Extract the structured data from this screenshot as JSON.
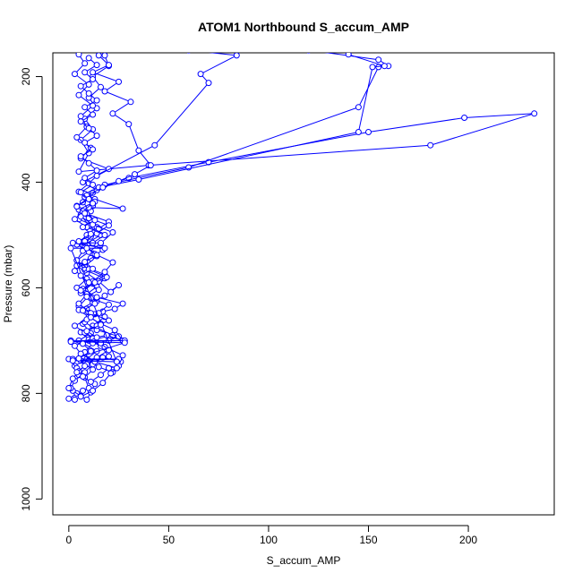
{
  "chart_data": {
    "type": "scatter",
    "title": "ATOM1 Northbound S_accum_AMP",
    "xlabel": "S_accum_AMP",
    "ylabel": "Pressure (mbar)",
    "xlim": [
      -8,
      243
    ],
    "ylim": [
      1030,
      155
    ],
    "y_reversed": true,
    "grid": false,
    "legend": "none",
    "x_ticks": [
      0,
      50,
      100,
      150,
      200
    ],
    "y_ticks": [
      200,
      400,
      600,
      800,
      1000
    ],
    "marker": "open-circle",
    "color": "#0000ff",
    "series": [
      {
        "points": [
          [
            0,
            810
          ],
          [
            4,
            800
          ],
          [
            7,
            795
          ],
          [
            10,
            790
          ],
          [
            8,
            770
          ],
          [
            12,
            755
          ],
          [
            6,
            738
          ],
          [
            20,
            730
          ],
          [
            16,
            710
          ],
          [
            10,
            700
          ],
          [
            22,
            690
          ],
          [
            12,
            672
          ],
          [
            18,
            655
          ],
          [
            9,
            640
          ],
          [
            14,
            625
          ],
          [
            6,
            610
          ],
          [
            12,
            592
          ],
          [
            18,
            575
          ],
          [
            8,
            560
          ],
          [
            14,
            540
          ],
          [
            7,
            520
          ],
          [
            16,
            500
          ],
          [
            10,
            482
          ],
          [
            6,
            462
          ],
          [
            12,
            445
          ],
          [
            8,
            428
          ],
          [
            15,
            410
          ],
          [
            30,
            392
          ],
          [
            70,
            362
          ],
          [
            150,
            305
          ],
          [
            198,
            278
          ],
          [
            233,
            270
          ],
          [
            181,
            330
          ],
          [
            40,
            368
          ],
          [
            5,
            380
          ],
          [
            10,
            345
          ],
          [
            6,
            320
          ],
          [
            12,
            300
          ],
          [
            8,
            280
          ],
          [
            14,
            260
          ],
          [
            10,
            240
          ],
          [
            16,
            220
          ],
          [
            12,
            200
          ],
          [
            20,
            180
          ],
          [
            18,
            160
          ]
        ]
      },
      {
        "points": [
          [
            2,
            795
          ],
          [
            6,
            805
          ],
          [
            9,
            812
          ],
          [
            11,
            798
          ],
          [
            13,
            782
          ],
          [
            5,
            765
          ],
          [
            3,
            748
          ],
          [
            9,
            735
          ],
          [
            14,
            720
          ],
          [
            5,
            700
          ],
          [
            11,
            686
          ],
          [
            7,
            668
          ],
          [
            13,
            650
          ],
          [
            5,
            635
          ],
          [
            10,
            615
          ],
          [
            4,
            600
          ],
          [
            9,
            583
          ],
          [
            3,
            568
          ],
          [
            8,
            552
          ],
          [
            12,
            535
          ],
          [
            4,
            518
          ],
          [
            9,
            500
          ],
          [
            14,
            485
          ],
          [
            5,
            470
          ],
          [
            11,
            455
          ],
          [
            7,
            438
          ],
          [
            12,
            420
          ],
          [
            18,
            405
          ],
          [
            60,
            372
          ],
          [
            145,
            258
          ],
          [
            155,
            182
          ],
          [
            160,
            180
          ],
          [
            155,
            168
          ],
          [
            120,
            150
          ]
        ]
      },
      {
        "points": [
          [
            1,
            790
          ],
          [
            3,
            776
          ],
          [
            8,
            760
          ],
          [
            12,
            745
          ],
          [
            17,
            732
          ],
          [
            26,
            740
          ],
          [
            22,
            760
          ],
          [
            15,
            750
          ],
          [
            10,
            738
          ],
          [
            8,
            722
          ],
          [
            12,
            705
          ],
          [
            20,
            700
          ],
          [
            25,
            692
          ],
          [
            14,
            680
          ],
          [
            8,
            665
          ],
          [
            17,
            645
          ],
          [
            23,
            640
          ],
          [
            27,
            630
          ],
          [
            14,
            618
          ],
          [
            7,
            602
          ],
          [
            12,
            588
          ],
          [
            18,
            570
          ],
          [
            22,
            552
          ],
          [
            13,
            536
          ],
          [
            8,
            520
          ],
          [
            11,
            503
          ],
          [
            15,
            488
          ],
          [
            20,
            475
          ],
          [
            9,
            460
          ],
          [
            4,
            445
          ],
          [
            10,
            430
          ],
          [
            14,
            415
          ],
          [
            7,
            400
          ],
          [
            20,
            375
          ],
          [
            6,
            355
          ],
          [
            11,
            335
          ],
          [
            4,
            315
          ],
          [
            9,
            295
          ],
          [
            6,
            275
          ],
          [
            12,
            255
          ],
          [
            5,
            235
          ],
          [
            10,
            215
          ],
          [
            3,
            195
          ],
          [
            8,
            175
          ],
          [
            5,
            158
          ]
        ]
      },
      {
        "points": [
          [
            0,
            735
          ],
          [
            4,
            752
          ],
          [
            7,
            768
          ],
          [
            11,
            778
          ],
          [
            16,
            765
          ],
          [
            20,
            752
          ],
          [
            25,
            748
          ],
          [
            27,
            728
          ],
          [
            18,
            712
          ],
          [
            10,
            698
          ],
          [
            6,
            684
          ],
          [
            14,
            672
          ],
          [
            20,
            662
          ],
          [
            11,
            648
          ],
          [
            5,
            630
          ],
          [
            9,
            612
          ],
          [
            14,
            598
          ],
          [
            18,
            582
          ],
          [
            8,
            566
          ],
          [
            4,
            548
          ],
          [
            10,
            532
          ],
          [
            16,
            516
          ],
          [
            22,
            495
          ],
          [
            12,
            480
          ],
          [
            6,
            465
          ],
          [
            10,
            448
          ],
          [
            27,
            450
          ],
          [
            13,
            432
          ],
          [
            5,
            418
          ],
          [
            10,
            402
          ],
          [
            14,
            388
          ],
          [
            43,
            330
          ],
          [
            70,
            212
          ],
          [
            66,
            195
          ],
          [
            84,
            160
          ],
          [
            60,
            150
          ]
        ]
      },
      {
        "points": [
          [
            3,
            812
          ],
          [
            6,
            806
          ],
          [
            12,
            795
          ],
          [
            17,
            780
          ],
          [
            21,
            762
          ],
          [
            24,
            752
          ],
          [
            13,
            740
          ],
          [
            6,
            725
          ],
          [
            3,
            710
          ],
          [
            12,
            695
          ],
          [
            19,
            690
          ],
          [
            27,
            700
          ],
          [
            23,
            680
          ],
          [
            16,
            668
          ],
          [
            10,
            655
          ],
          [
            5,
            642
          ],
          [
            12,
            628
          ],
          [
            18,
            615
          ],
          [
            25,
            595
          ],
          [
            21,
            608
          ],
          [
            15,
            588
          ],
          [
            9,
            572
          ],
          [
            4,
            558
          ],
          [
            11,
            544
          ],
          [
            17,
            528
          ],
          [
            8,
            512
          ],
          [
            14,
            497
          ],
          [
            20,
            482
          ],
          [
            10,
            468
          ],
          [
            5,
            452
          ],
          [
            13,
            437
          ],
          [
            8,
            422
          ],
          [
            15,
            410
          ],
          [
            35,
            395
          ],
          [
            145,
            305
          ],
          [
            152,
            182
          ],
          [
            158,
            180
          ],
          [
            140,
            158
          ]
        ]
      },
      {
        "points": [
          [
            0,
            790
          ],
          [
            2,
            772
          ],
          [
            5,
            758
          ],
          [
            9,
            745
          ],
          [
            14,
            732
          ],
          [
            20,
            718
          ],
          [
            16,
            705
          ],
          [
            12,
            696
          ],
          [
            8,
            685
          ],
          [
            3,
            672
          ],
          [
            9,
            660
          ],
          [
            15,
            648
          ],
          [
            20,
            632
          ],
          [
            11,
            620
          ],
          [
            6,
            605
          ],
          [
            13,
            590
          ],
          [
            19,
            580
          ],
          [
            10,
            565
          ],
          [
            4,
            548
          ],
          [
            7,
            530
          ],
          [
            12,
            515
          ],
          [
            18,
            500
          ],
          [
            9,
            485
          ],
          [
            3,
            470
          ],
          [
            7,
            455
          ],
          [
            12,
            440
          ],
          [
            9,
            425
          ],
          [
            17,
            410
          ],
          [
            25,
            398
          ],
          [
            33,
            385
          ],
          [
            41,
            368
          ],
          [
            35,
            340
          ],
          [
            30,
            290
          ],
          [
            22,
            270
          ],
          [
            31,
            248
          ],
          [
            18,
            228
          ],
          [
            25,
            210
          ],
          [
            12,
            192
          ],
          [
            20,
            178
          ],
          [
            15,
            160
          ]
        ]
      },
      {
        "points": [
          [
            1,
            700
          ],
          [
            28,
            700
          ],
          [
            1,
            702
          ],
          [
            28,
            704
          ],
          [
            2,
            735
          ],
          [
            25,
            735
          ],
          [
            2,
            738
          ],
          [
            24,
            740
          ],
          [
            1,
            525
          ],
          [
            18,
            525
          ],
          [
            2,
            515
          ],
          [
            16,
            515
          ]
        ]
      },
      {
        "points": [
          [
            4,
            760
          ],
          [
            8,
            748
          ],
          [
            5,
            734
          ],
          [
            11,
            720
          ],
          [
            7,
            706
          ],
          [
            14,
            694
          ],
          [
            9,
            682
          ],
          [
            16,
            670
          ],
          [
            11,
            656
          ],
          [
            7,
            643
          ],
          [
            13,
            630
          ],
          [
            9,
            617
          ],
          [
            15,
            604
          ],
          [
            10,
            590
          ],
          [
            6,
            577
          ],
          [
            12,
            564
          ],
          [
            8,
            551
          ],
          [
            14,
            538
          ],
          [
            9,
            525
          ],
          [
            5,
            512
          ],
          [
            11,
            498
          ],
          [
            7,
            485
          ],
          [
            13,
            472
          ],
          [
            8,
            459
          ],
          [
            4,
            446
          ],
          [
            10,
            432
          ],
          [
            6,
            419
          ],
          [
            12,
            405
          ],
          [
            8,
            392
          ],
          [
            14,
            378
          ],
          [
            10,
            364
          ],
          [
            6,
            351
          ],
          [
            12,
            338
          ],
          [
            8,
            325
          ],
          [
            14,
            312
          ],
          [
            10,
            298
          ],
          [
            6,
            285
          ],
          [
            12,
            272
          ],
          [
            8,
            258
          ],
          [
            14,
            245
          ],
          [
            10,
            232
          ],
          [
            6,
            218
          ],
          [
            12,
            205
          ],
          [
            8,
            192
          ],
          [
            14,
            178
          ],
          [
            10,
            165
          ]
        ]
      }
    ]
  }
}
